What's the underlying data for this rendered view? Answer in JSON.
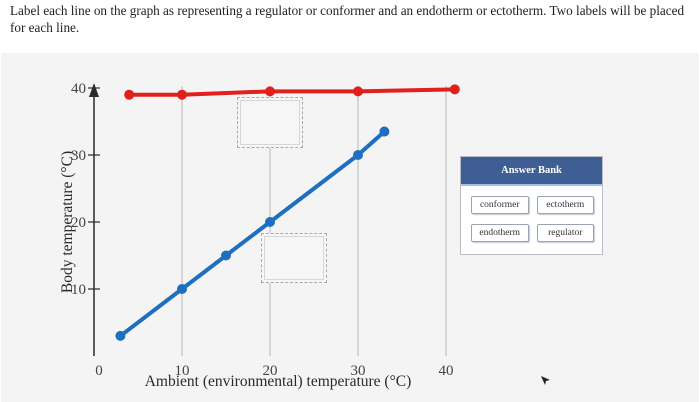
{
  "question": {
    "text": "Label each line on the graph as representing a regulator or conformer and an endotherm or ectotherm. Two labels will be placed for each line."
  },
  "answer_bank": {
    "title": "Answer Bank",
    "items": [
      "conformer",
      "ectotherm",
      "endotherm",
      "regulator"
    ]
  },
  "colors": {
    "regulator_line": "#e0201b",
    "conformer_line": "#1f6fc0",
    "bank_header": "#3f5f94"
  },
  "chart_data": {
    "type": "line",
    "xlabel": "Ambient (environmental) temperature (°C)",
    "ylabel": "Body temperature (°C)",
    "xlim": [
      0,
      40
    ],
    "ylim": [
      0,
      40
    ],
    "x_ticks": [
      "0",
      "10",
      "20",
      "30",
      "40"
    ],
    "y_ticks": [
      "10",
      "20",
      "30",
      "40"
    ],
    "grid": "vertical",
    "series": [
      {
        "color": "#e0201b",
        "points": [
          [
            4,
            39
          ],
          [
            10,
            39
          ],
          [
            20,
            39.5
          ],
          [
            30,
            39.5
          ],
          [
            41,
            39.8
          ]
        ]
      },
      {
        "color": "#1f6fc0",
        "points": [
          [
            3,
            3
          ],
          [
            10,
            10
          ],
          [
            15,
            15
          ],
          [
            20,
            20
          ],
          [
            30,
            30
          ],
          [
            33,
            33.5
          ]
        ]
      }
    ]
  }
}
